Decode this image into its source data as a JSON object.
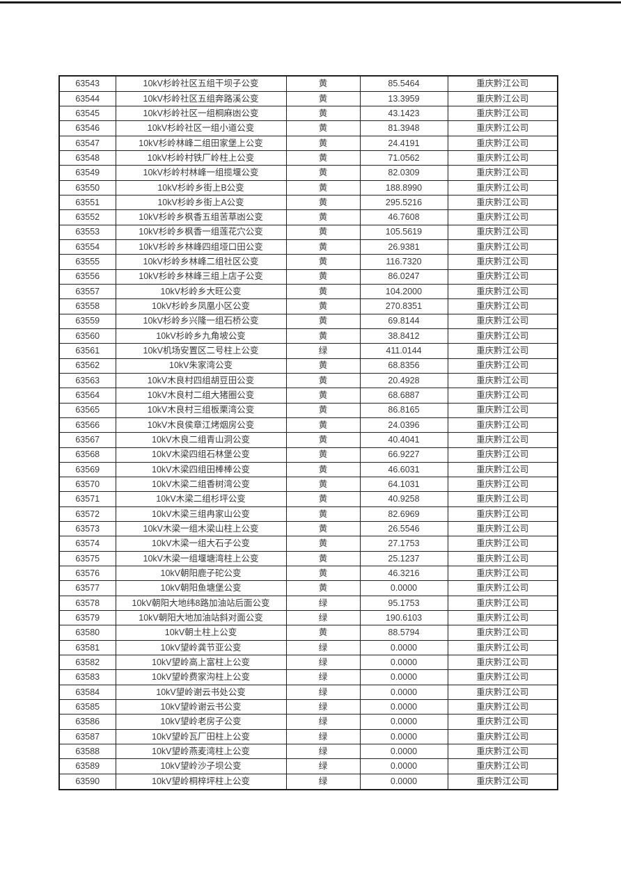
{
  "colors": {
    "top_rule": "#1a1a1a",
    "table_border": "#1f1f1f",
    "text": "#3a3a3a"
  },
  "table": {
    "row_fields": [
      "serial",
      "name",
      "status",
      "value",
      "company"
    ],
    "rows": [
      {
        "serial": "63543",
        "name": "10kV杉岭社区五组干坝子公变",
        "status": "黄",
        "value": "85.5464",
        "company": "重庆黔江公司"
      },
      {
        "serial": "63544",
        "name": "10kV杉岭社区五组奔路溪公变",
        "status": "黄",
        "value": "13.3959",
        "company": "重庆黔江公司"
      },
      {
        "serial": "63545",
        "name": "10kV杉岭社区一组桐麻凼公变",
        "status": "黄",
        "value": "43.1423",
        "company": "重庆黔江公司"
      },
      {
        "serial": "63546",
        "name": "10kV杉岭社区一组小道公变",
        "status": "黄",
        "value": "81.3948",
        "company": "重庆黔江公司"
      },
      {
        "serial": "63547",
        "name": "10kV杉岭林峰二组田家堡上公变",
        "status": "黄",
        "value": "24.4191",
        "company": "重庆黔江公司"
      },
      {
        "serial": "63548",
        "name": "10kV杉岭村铁厂岭柱上公变",
        "status": "黄",
        "value": "71.0562",
        "company": "重庆黔江公司"
      },
      {
        "serial": "63549",
        "name": "10kV杉岭村林峰一组揽堰公变",
        "status": "黄",
        "value": "82.0309",
        "company": "重庆黔江公司"
      },
      {
        "serial": "63550",
        "name": "10kV杉岭乡街上B公变",
        "status": "黄",
        "value": "188.8990",
        "company": "重庆黔江公司"
      },
      {
        "serial": "63551",
        "name": "10kV杉岭乡街上A公变",
        "status": "黄",
        "value": "295.5216",
        "company": "重庆黔江公司"
      },
      {
        "serial": "63552",
        "name": "10kV杉岭乡枫香五组苦草凼公变",
        "status": "黄",
        "value": "46.7608",
        "company": "重庆黔江公司"
      },
      {
        "serial": "63553",
        "name": "10kV杉岭乡枫香一组莲花穴公变",
        "status": "黄",
        "value": "105.5619",
        "company": "重庆黔江公司"
      },
      {
        "serial": "63554",
        "name": "10kV杉岭乡林峰四组垭口田公变",
        "status": "黄",
        "value": "26.9381",
        "company": "重庆黔江公司"
      },
      {
        "serial": "63555",
        "name": "10kV杉岭乡林峰二组社区公变",
        "status": "黄",
        "value": "116.7320",
        "company": "重庆黔江公司"
      },
      {
        "serial": "63556",
        "name": "10kV杉岭乡林峰三组上店子公变",
        "status": "黄",
        "value": "86.0247",
        "company": "重庆黔江公司"
      },
      {
        "serial": "63557",
        "name": "10kV杉岭乡大旺公变",
        "status": "黄",
        "value": "104.2000",
        "company": "重庆黔江公司"
      },
      {
        "serial": "63558",
        "name": "10kV杉岭乡凤凰小区公变",
        "status": "黄",
        "value": "270.8351",
        "company": "重庆黔江公司"
      },
      {
        "serial": "63559",
        "name": "10kV杉岭乡兴隆一组石桥公变",
        "status": "黄",
        "value": "69.8144",
        "company": "重庆黔江公司"
      },
      {
        "serial": "63560",
        "name": "10kV杉岭乡九角坡公变",
        "status": "黄",
        "value": "38.8412",
        "company": "重庆黔江公司"
      },
      {
        "serial": "63561",
        "name": "10kV机场安置区二号柱上公变",
        "status": "绿",
        "value": "411.0144",
        "company": "重庆黔江公司"
      },
      {
        "serial": "63562",
        "name": "10kV朱家湾公变",
        "status": "黄",
        "value": "68.8356",
        "company": "重庆黔江公司"
      },
      {
        "serial": "63563",
        "name": "10kV木良村四组胡豆田公变",
        "status": "黄",
        "value": "20.4928",
        "company": "重庆黔江公司"
      },
      {
        "serial": "63564",
        "name": "10kV木良村二组大猪圈公变",
        "status": "黄",
        "value": "68.6887",
        "company": "重庆黔江公司"
      },
      {
        "serial": "63565",
        "name": "10kV木良村三组板栗湾公变",
        "status": "黄",
        "value": "86.8165",
        "company": "重庆黔江公司"
      },
      {
        "serial": "63566",
        "name": "10kV木良侯章江烤烟房公变",
        "status": "黄",
        "value": "24.0396",
        "company": "重庆黔江公司"
      },
      {
        "serial": "63567",
        "name": "10kV木良二组青山洞公变",
        "status": "黄",
        "value": "40.4041",
        "company": "重庆黔江公司"
      },
      {
        "serial": "63568",
        "name": "10kV木梁四组石林堡公变",
        "status": "黄",
        "value": "66.9227",
        "company": "重庆黔江公司"
      },
      {
        "serial": "63569",
        "name": "10kV木梁四组田棒棒公变",
        "status": "黄",
        "value": "46.6031",
        "company": "重庆黔江公司"
      },
      {
        "serial": "63570",
        "name": "10kV木梁二组香树湾公变",
        "status": "黄",
        "value": "64.1031",
        "company": "重庆黔江公司"
      },
      {
        "serial": "63571",
        "name": "10kV木梁二组杉坪公变",
        "status": "黄",
        "value": "40.9258",
        "company": "重庆黔江公司"
      },
      {
        "serial": "63572",
        "name": "10kV木梁三组冉家山公变",
        "status": "黄",
        "value": "82.6969",
        "company": "重庆黔江公司"
      },
      {
        "serial": "63573",
        "name": "10kV木梁一组木梁山柱上公变",
        "status": "黄",
        "value": "26.5546",
        "company": "重庆黔江公司"
      },
      {
        "serial": "63574",
        "name": "10kV木梁一组大石子公变",
        "status": "黄",
        "value": "27.1753",
        "company": "重庆黔江公司"
      },
      {
        "serial": "63575",
        "name": "10kV木梁一组堰塘湾柱上公变",
        "status": "黄",
        "value": "25.1237",
        "company": "重庆黔江公司"
      },
      {
        "serial": "63576",
        "name": "10kV朝阳鹿子砣公变",
        "status": "黄",
        "value": "46.3216",
        "company": "重庆黔江公司"
      },
      {
        "serial": "63577",
        "name": "10kV朝阳鱼塘堡公变",
        "status": "黄",
        "value": "0.0000",
        "company": "重庆黔江公司"
      },
      {
        "serial": "63578",
        "name": "10kV朝阳大地纬8路加油站后面公变",
        "status": "绿",
        "value": "95.1753",
        "company": "重庆黔江公司"
      },
      {
        "serial": "63579",
        "name": "10kV朝阳大地加油站斜对面公变",
        "status": "绿",
        "value": "190.6103",
        "company": "重庆黔江公司"
      },
      {
        "serial": "63580",
        "name": "10kV朝土柱上公变",
        "status": "黄",
        "value": "88.5794",
        "company": "重庆黔江公司"
      },
      {
        "serial": "63581",
        "name": "10kV望岭龚节亚公变",
        "status": "绿",
        "value": "0.0000",
        "company": "重庆黔江公司"
      },
      {
        "serial": "63582",
        "name": "10kV望岭高上富柱上公变",
        "status": "绿",
        "value": "0.0000",
        "company": "重庆黔江公司"
      },
      {
        "serial": "63583",
        "name": "10kV望岭费家沟柱上公变",
        "status": "绿",
        "value": "0.0000",
        "company": "重庆黔江公司"
      },
      {
        "serial": "63584",
        "name": "10kV望岭谢云书处公变",
        "status": "绿",
        "value": "0.0000",
        "company": "重庆黔江公司"
      },
      {
        "serial": "63585",
        "name": "10kV望岭谢云书公变",
        "status": "绿",
        "value": "0.0000",
        "company": "重庆黔江公司"
      },
      {
        "serial": "63586",
        "name": "10kV望岭老房子公变",
        "status": "绿",
        "value": "0.0000",
        "company": "重庆黔江公司"
      },
      {
        "serial": "63587",
        "name": "10kV望岭瓦厂田柱上公变",
        "status": "绿",
        "value": "0.0000",
        "company": "重庆黔江公司"
      },
      {
        "serial": "63588",
        "name": "10kV望岭燕麦湾柱上公变",
        "status": "绿",
        "value": "0.0000",
        "company": "重庆黔江公司"
      },
      {
        "serial": "63589",
        "name": "10kV望岭沙子坝公变",
        "status": "绿",
        "value": "0.0000",
        "company": "重庆黔江公司"
      },
      {
        "serial": "63590",
        "name": "10kV望岭桐梓坪柱上公变",
        "status": "绿",
        "value": "0.0000",
        "company": "重庆黔江公司"
      }
    ]
  }
}
